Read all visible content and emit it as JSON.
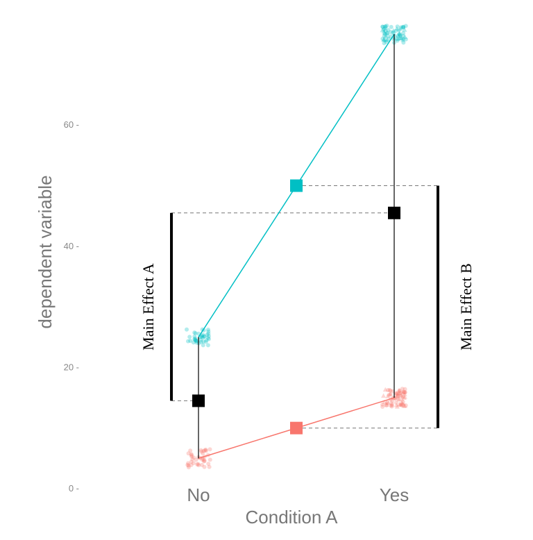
{
  "chart_data": {
    "type": "scatter",
    "xlabel": "Condition A",
    "ylabel": "dependent variable",
    "categories": [
      "No",
      "Yes"
    ],
    "yticks": [
      0,
      20,
      40,
      60
    ],
    "ylim": [
      0,
      78
    ],
    "grid": false,
    "series": [
      {
        "color": "#00BFC4",
        "marker": "circle",
        "points": [
          {
            "category": "No",
            "mean": 25
          },
          {
            "category": "Yes",
            "mean": 75
          }
        ],
        "line": true,
        "jitter_spread": 1.5,
        "n_points": 40,
        "pos_shift": 0
      },
      {
        "color": "#F8766D",
        "marker": "circle",
        "points": [
          {
            "category": "No",
            "mean": 5
          },
          {
            "category": "Yes",
            "mean": 15
          }
        ],
        "line": true,
        "jitter_spread": 1.5,
        "n_points": 40,
        "pos_shift": 0
      },
      {
        "color": "#F8766D",
        "marker": "triangle",
        "points": [
          {
            "category": "Yes",
            "mean": 15
          }
        ],
        "line": false,
        "jitter_spread": 1.5,
        "n_points": 30,
        "pos_shift": 0
      },
      {
        "color": "#00BFC4",
        "marker": "triangle",
        "points": [
          {
            "category": "Yes",
            "mean": 75
          }
        ],
        "line": false,
        "jitter_spread": 1.0,
        "n_points": 25,
        "pos_shift": 0
      }
    ],
    "marginal_means": [
      {
        "label": "B marginal high",
        "x": 0.5,
        "y": 50,
        "color": "#00BFC4"
      },
      {
        "label": "B marginal low",
        "x": 0.5,
        "y": 10,
        "color": "#F8766D"
      },
      {
        "label": "A marginal No",
        "x": 0,
        "y": 14.5,
        "color": "#000000"
      },
      {
        "label": "A marginal Yes",
        "x": 1,
        "y": 45.5,
        "color": "#000000"
      }
    ],
    "annotations": [
      {
        "text": "Main Effect A",
        "from": 14.5,
        "to": 45.5,
        "side": "left"
      },
      {
        "text": "Main Effect B",
        "from": 10,
        "to": 50,
        "side": "right"
      }
    ]
  }
}
